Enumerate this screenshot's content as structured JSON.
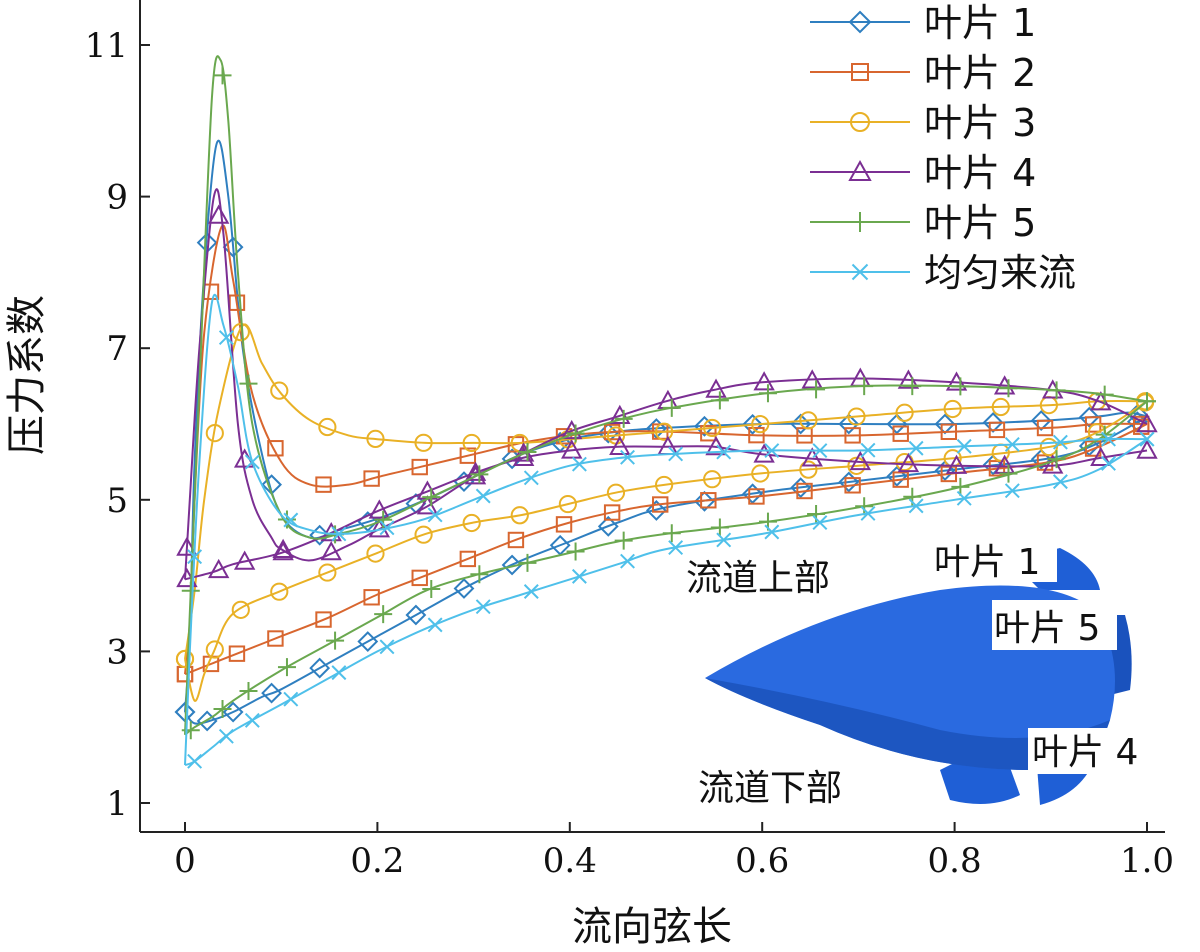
{
  "chart_data": {
    "type": "line",
    "title": "",
    "xlabel": "流向弦长",
    "ylabel": "压力系数",
    "xlim": [
      0,
      1.0
    ],
    "ylim": [
      0.6,
      11.6
    ],
    "xticks": [
      "0",
      "0.2",
      "0.4",
      "0.6",
      "0.8",
      "1.0"
    ],
    "xtick_values": [
      0,
      0.2,
      0.4,
      0.6,
      0.8,
      1.0
    ],
    "yticks": [
      "1",
      "3",
      "5",
      "7",
      "9",
      "11"
    ],
    "ytick_values": [
      1,
      3,
      5,
      7,
      9,
      11
    ],
    "grid": false,
    "legend_position": "top-right",
    "series": [
      {
        "name": "叶片 1",
        "color": "#2f7fc0",
        "marker": "diamond",
        "upper": [
          [
            0,
            2.2
          ],
          [
            0.005,
            3.2
          ],
          [
            0.01,
            5.5
          ],
          [
            0.02,
            8.0
          ],
          [
            0.033,
            9.7
          ],
          [
            0.045,
            9.0
          ],
          [
            0.06,
            7.0
          ],
          [
            0.08,
            5.6
          ],
          [
            0.1,
            4.8
          ],
          [
            0.13,
            4.5
          ],
          [
            0.16,
            4.6
          ],
          [
            0.2,
            4.75
          ],
          [
            0.25,
            5.0
          ],
          [
            0.3,
            5.3
          ],
          [
            0.35,
            5.6
          ],
          [
            0.4,
            5.8
          ],
          [
            0.45,
            5.9
          ],
          [
            0.5,
            5.95
          ],
          [
            0.6,
            6.0
          ],
          [
            0.7,
            6.0
          ],
          [
            0.8,
            6.0
          ],
          [
            0.9,
            6.05
          ],
          [
            0.95,
            6.1
          ],
          [
            0.98,
            6.15
          ],
          [
            1.0,
            6.1
          ]
        ],
        "lower": [
          [
            0,
            2.2
          ],
          [
            0.01,
            2.05
          ],
          [
            0.03,
            2.1
          ],
          [
            0.05,
            2.2
          ],
          [
            0.08,
            2.4
          ],
          [
            0.1,
            2.5
          ],
          [
            0.15,
            2.85
          ],
          [
            0.2,
            3.2
          ],
          [
            0.25,
            3.55
          ],
          [
            0.3,
            3.9
          ],
          [
            0.35,
            4.2
          ],
          [
            0.4,
            4.45
          ],
          [
            0.45,
            4.7
          ],
          [
            0.5,
            4.9
          ],
          [
            0.6,
            5.1
          ],
          [
            0.7,
            5.25
          ],
          [
            0.8,
            5.4
          ],
          [
            0.9,
            5.55
          ],
          [
            0.95,
            5.75
          ],
          [
            1.0,
            6.1
          ]
        ]
      },
      {
        "name": "叶片 2",
        "color": "#d8662f",
        "marker": "square",
        "upper": [
          [
            0,
            2.7
          ],
          [
            0.005,
            3.4
          ],
          [
            0.01,
            5.0
          ],
          [
            0.02,
            7.2
          ],
          [
            0.038,
            8.6
          ],
          [
            0.05,
            7.9
          ],
          [
            0.07,
            6.4
          ],
          [
            0.1,
            5.5
          ],
          [
            0.13,
            5.2
          ],
          [
            0.17,
            5.2
          ],
          [
            0.2,
            5.3
          ],
          [
            0.25,
            5.45
          ],
          [
            0.3,
            5.6
          ],
          [
            0.35,
            5.75
          ],
          [
            0.4,
            5.85
          ],
          [
            0.45,
            5.9
          ],
          [
            0.5,
            5.9
          ],
          [
            0.6,
            5.85
          ],
          [
            0.7,
            5.85
          ],
          [
            0.8,
            5.9
          ],
          [
            0.9,
            5.95
          ],
          [
            0.95,
            6.0
          ],
          [
            1.0,
            6.0
          ]
        ],
        "lower": [
          [
            0,
            2.7
          ],
          [
            0.01,
            2.75
          ],
          [
            0.03,
            2.85
          ],
          [
            0.05,
            2.95
          ],
          [
            0.1,
            3.2
          ],
          [
            0.15,
            3.45
          ],
          [
            0.2,
            3.75
          ],
          [
            0.25,
            4.0
          ],
          [
            0.3,
            4.25
          ],
          [
            0.35,
            4.5
          ],
          [
            0.4,
            4.7
          ],
          [
            0.45,
            4.85
          ],
          [
            0.5,
            4.95
          ],
          [
            0.6,
            5.05
          ],
          [
            0.7,
            5.2
          ],
          [
            0.8,
            5.35
          ],
          [
            0.9,
            5.5
          ],
          [
            0.95,
            5.7
          ],
          [
            1.0,
            6.0
          ]
        ]
      },
      {
        "name": "叶片 3",
        "color": "#e9b126",
        "marker": "circle",
        "upper": [
          [
            0,
            2.9
          ],
          [
            0.01,
            3.8
          ],
          [
            0.02,
            5.0
          ],
          [
            0.035,
            6.2
          ],
          [
            0.06,
            7.3
          ],
          [
            0.08,
            6.8
          ],
          [
            0.1,
            6.4
          ],
          [
            0.13,
            6.05
          ],
          [
            0.17,
            5.85
          ],
          [
            0.2,
            5.8
          ],
          [
            0.25,
            5.75
          ],
          [
            0.3,
            5.75
          ],
          [
            0.35,
            5.75
          ],
          [
            0.4,
            5.8
          ],
          [
            0.45,
            5.85
          ],
          [
            0.5,
            5.9
          ],
          [
            0.6,
            6.0
          ],
          [
            0.7,
            6.1
          ],
          [
            0.8,
            6.2
          ],
          [
            0.9,
            6.25
          ],
          [
            0.95,
            6.3
          ],
          [
            1.0,
            6.3
          ]
        ],
        "lower": [
          [
            0,
            2.9
          ],
          [
            0.01,
            2.35
          ],
          [
            0.02,
            2.7
          ],
          [
            0.03,
            3.0
          ],
          [
            0.05,
            3.5
          ],
          [
            0.1,
            3.8
          ],
          [
            0.15,
            4.05
          ],
          [
            0.2,
            4.3
          ],
          [
            0.25,
            4.55
          ],
          [
            0.3,
            4.7
          ],
          [
            0.35,
            4.8
          ],
          [
            0.4,
            4.95
          ],
          [
            0.45,
            5.1
          ],
          [
            0.5,
            5.2
          ],
          [
            0.6,
            5.35
          ],
          [
            0.7,
            5.45
          ],
          [
            0.8,
            5.55
          ],
          [
            0.9,
            5.7
          ],
          [
            0.95,
            5.9
          ],
          [
            1.0,
            6.3
          ]
        ]
      },
      {
        "name": "叶片 4",
        "color": "#7b2f93",
        "marker": "triangle",
        "upper": [
          [
            0,
            3.95
          ],
          [
            0.005,
            5.0
          ],
          [
            0.015,
            7.0
          ],
          [
            0.03,
            9.0
          ],
          [
            0.04,
            8.5
          ],
          [
            0.055,
            6.0
          ],
          [
            0.07,
            5.0
          ],
          [
            0.09,
            4.5
          ],
          [
            0.1,
            4.35
          ],
          [
            0.13,
            4.2
          ],
          [
            0.17,
            4.4
          ],
          [
            0.2,
            4.6
          ],
          [
            0.25,
            4.9
          ],
          [
            0.3,
            5.3
          ],
          [
            0.35,
            5.6
          ],
          [
            0.4,
            5.9
          ],
          [
            0.45,
            6.1
          ],
          [
            0.5,
            6.3
          ],
          [
            0.55,
            6.45
          ],
          [
            0.6,
            6.55
          ],
          [
            0.7,
            6.6
          ],
          [
            0.8,
            6.55
          ],
          [
            0.9,
            6.45
          ],
          [
            0.95,
            6.3
          ],
          [
            1.0,
            6.0
          ]
        ],
        "lower": [
          [
            0,
            3.95
          ],
          [
            0.03,
            4.05
          ],
          [
            0.05,
            4.15
          ],
          [
            0.1,
            4.3
          ],
          [
            0.15,
            4.55
          ],
          [
            0.2,
            4.85
          ],
          [
            0.25,
            5.1
          ],
          [
            0.3,
            5.35
          ],
          [
            0.35,
            5.55
          ],
          [
            0.4,
            5.65
          ],
          [
            0.45,
            5.7
          ],
          [
            0.5,
            5.7
          ],
          [
            0.55,
            5.7
          ],
          [
            0.6,
            5.6
          ],
          [
            0.7,
            5.5
          ],
          [
            0.8,
            5.45
          ],
          [
            0.9,
            5.45
          ],
          [
            0.95,
            5.55
          ],
          [
            1.0,
            5.65
          ]
        ]
      },
      {
        "name": "叶片 5",
        "color": "#6aa84f",
        "marker": "plus",
        "upper": [
          [
            0,
            1.9
          ],
          [
            0.005,
            3.5
          ],
          [
            0.015,
            6.5
          ],
          [
            0.028,
            10.3
          ],
          [
            0.037,
            10.8
          ],
          [
            0.045,
            10.0
          ],
          [
            0.055,
            8.0
          ],
          [
            0.07,
            6.0
          ],
          [
            0.1,
            4.8
          ],
          [
            0.13,
            4.5
          ],
          [
            0.16,
            4.55
          ],
          [
            0.2,
            4.7
          ],
          [
            0.25,
            5.0
          ],
          [
            0.3,
            5.3
          ],
          [
            0.35,
            5.6
          ],
          [
            0.4,
            5.85
          ],
          [
            0.45,
            6.05
          ],
          [
            0.5,
            6.2
          ],
          [
            0.6,
            6.4
          ],
          [
            0.7,
            6.5
          ],
          [
            0.8,
            6.5
          ],
          [
            0.9,
            6.45
          ],
          [
            0.95,
            6.4
          ],
          [
            1.0,
            6.3
          ]
        ],
        "lower": [
          [
            0,
            1.9
          ],
          [
            0.01,
            2.0
          ],
          [
            0.03,
            2.15
          ],
          [
            0.05,
            2.35
          ],
          [
            0.1,
            2.75
          ],
          [
            0.15,
            3.1
          ],
          [
            0.2,
            3.45
          ],
          [
            0.25,
            3.8
          ],
          [
            0.3,
            4.0
          ],
          [
            0.35,
            4.15
          ],
          [
            0.4,
            4.3
          ],
          [
            0.45,
            4.45
          ],
          [
            0.5,
            4.55
          ],
          [
            0.6,
            4.7
          ],
          [
            0.7,
            4.9
          ],
          [
            0.8,
            5.15
          ],
          [
            0.9,
            5.5
          ],
          [
            0.95,
            5.8
          ],
          [
            1.0,
            6.3
          ]
        ]
      },
      {
        "name": "均匀来流",
        "color": "#4fc0ea",
        "marker": "x",
        "upper": [
          [
            0,
            1.5
          ],
          [
            0.005,
            3.0
          ],
          [
            0.015,
            5.5
          ],
          [
            0.028,
            7.6
          ],
          [
            0.04,
            7.3
          ],
          [
            0.055,
            6.5
          ],
          [
            0.07,
            5.5
          ],
          [
            0.1,
            4.8
          ],
          [
            0.13,
            4.6
          ],
          [
            0.16,
            4.55
          ],
          [
            0.2,
            4.6
          ],
          [
            0.25,
            4.75
          ],
          [
            0.3,
            5.0
          ],
          [
            0.35,
            5.25
          ],
          [
            0.4,
            5.45
          ],
          [
            0.45,
            5.55
          ],
          [
            0.5,
            5.6
          ],
          [
            0.6,
            5.65
          ],
          [
            0.7,
            5.65
          ],
          [
            0.8,
            5.7
          ],
          [
            0.9,
            5.75
          ],
          [
            0.95,
            5.8
          ],
          [
            1.0,
            5.8
          ]
        ],
        "lower": [
          [
            0,
            1.5
          ],
          [
            0.01,
            1.55
          ],
          [
            0.03,
            1.75
          ],
          [
            0.05,
            1.95
          ],
          [
            0.1,
            2.3
          ],
          [
            0.15,
            2.65
          ],
          [
            0.2,
            3.0
          ],
          [
            0.25,
            3.3
          ],
          [
            0.3,
            3.55
          ],
          [
            0.35,
            3.75
          ],
          [
            0.4,
            3.95
          ],
          [
            0.45,
            4.15
          ],
          [
            0.5,
            4.35
          ],
          [
            0.6,
            4.55
          ],
          [
            0.7,
            4.8
          ],
          [
            0.8,
            5.0
          ],
          [
            0.9,
            5.2
          ],
          [
            0.95,
            5.4
          ],
          [
            1.0,
            5.8
          ]
        ]
      }
    ],
    "inset": {
      "labels": [
        "流道上部",
        "叶片 1",
        "叶片 5",
        "叶片 4",
        "流道下部"
      ],
      "color": "#1f5fd6"
    }
  }
}
